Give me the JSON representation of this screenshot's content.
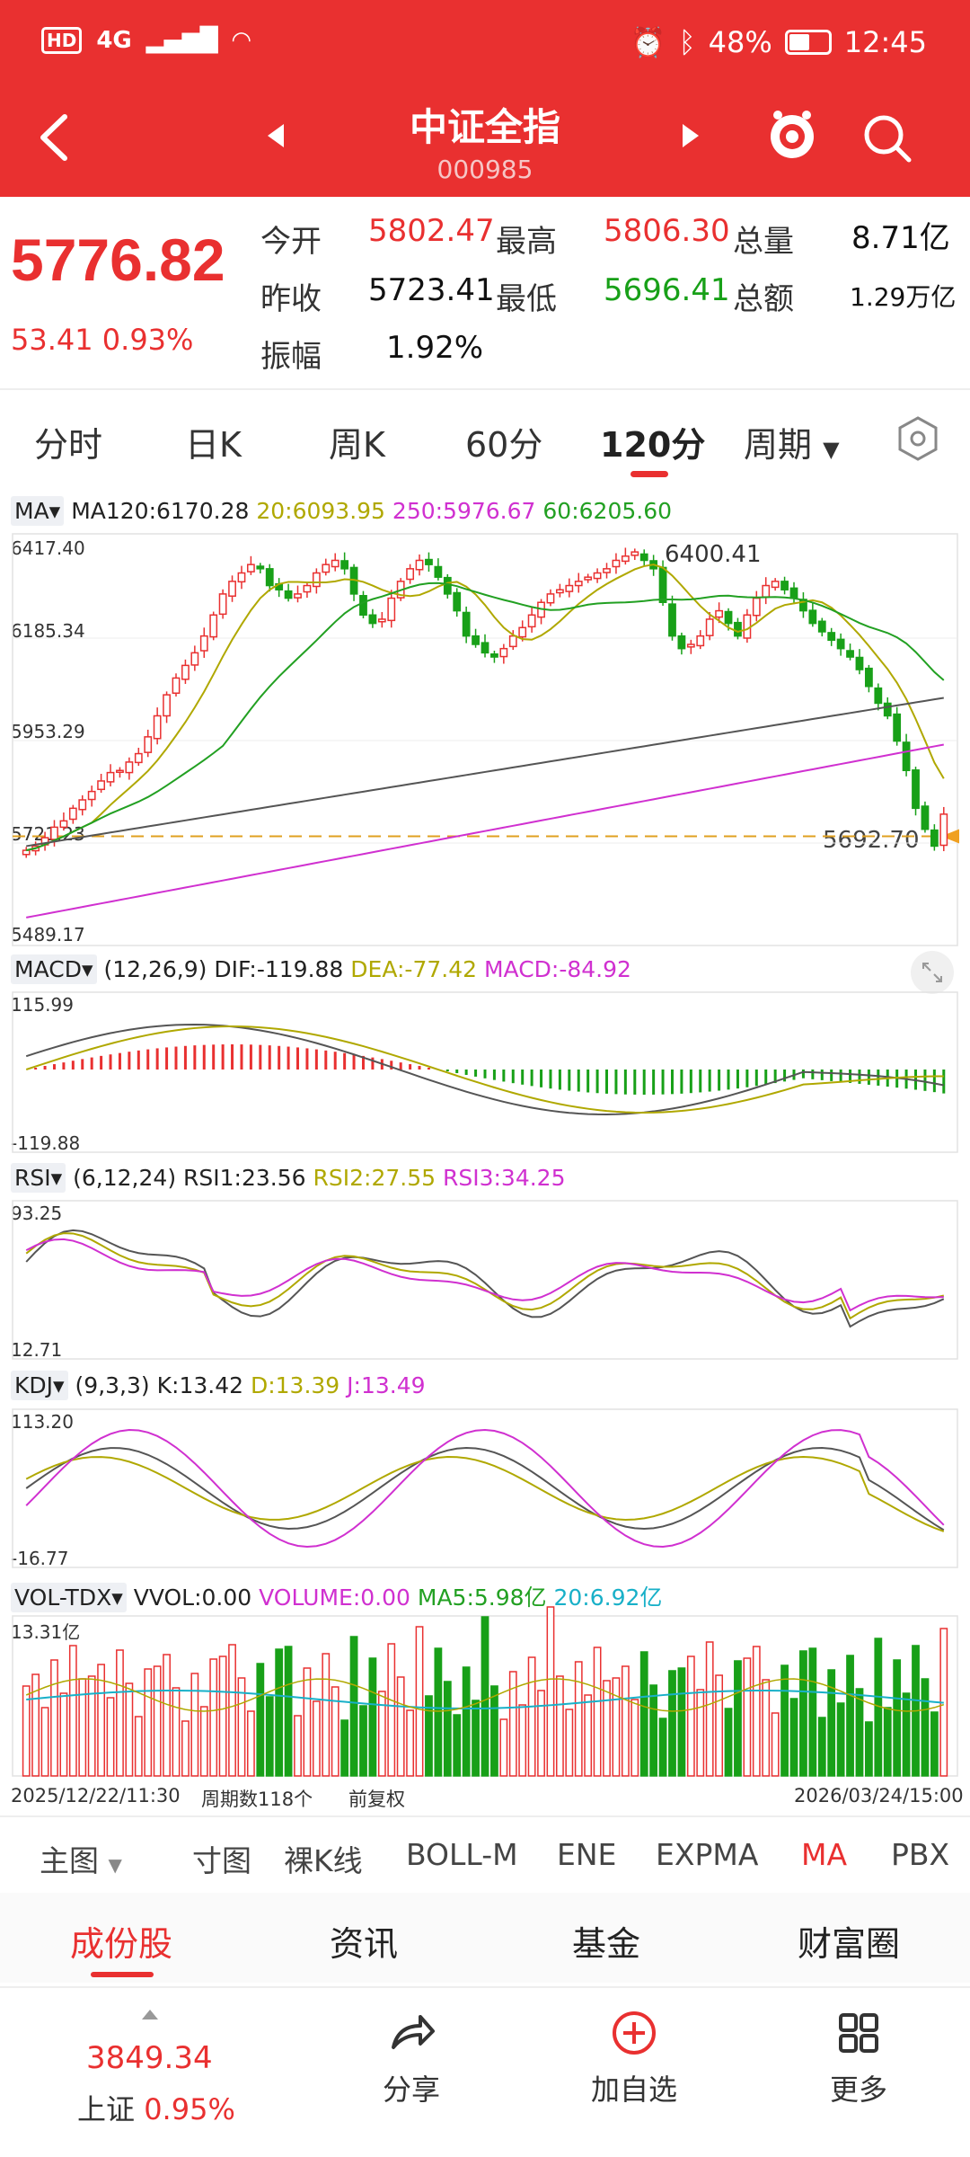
{
  "status": {
    "network": "4G",
    "hd": "HD",
    "battery": "48%",
    "time": "12:45"
  },
  "header": {
    "title": "中证全指",
    "code": "000985"
  },
  "quote": {
    "price": "5776.82",
    "change": "53.41",
    "change_pct": "0.93%",
    "open_label": "今开",
    "open": "5802.47",
    "high_label": "最高",
    "high": "5806.30",
    "vol_label": "总量",
    "vol": "8.71亿",
    "prev_label": "昨收",
    "prev": "5723.41",
    "low_label": "最低",
    "low": "5696.41",
    "amt_label": "总额",
    "amt": "1.29万亿",
    "amp_label": "振幅",
    "amp": "1.92%"
  },
  "tabs": [
    "分时",
    "日K",
    "周K",
    "60分",
    "120分",
    "周期"
  ],
  "active_tab": "120分",
  "main_chart": {
    "ind_name": "MA",
    "ma120": "MA120:6170.28",
    "ma20": "20:6093.95",
    "ma250": "250:5976.67",
    "ma60": "60:6205.60",
    "y_ticks": [
      "6417.40",
      "6185.34",
      "5953.29",
      "5721.23",
      "5489.17"
    ],
    "high_marker": "6400.41",
    "low_marker": "5692.70"
  },
  "macd": {
    "name": "MACD",
    "params": "(12,26,9)",
    "dif": "DIF:-119.88",
    "dea": "DEA:-77.42",
    "macd": "MACD:-84.92",
    "top": "115.99",
    "bottom": "-119.88"
  },
  "rsi": {
    "name": "RSI",
    "params": "(6,12,24)",
    "r1": "RSI1:23.56",
    "r2": "RSI2:27.55",
    "r3": "RSI3:34.25",
    "top": "93.25",
    "bottom": "12.71"
  },
  "kdj": {
    "name": "KDJ",
    "params": "(9,3,3)",
    "k": "K:13.42",
    "d": "D:13.39",
    "j": "J:13.49",
    "top": "113.20",
    "bottom": "-16.77"
  },
  "vol": {
    "name": "VOL-TDX",
    "vvol": "VVOL:0.00",
    "volume": "VOLUME:0.00",
    "ma5": "MA5:5.98亿",
    "ma20": "20:6.92亿",
    "top": "13.31亿"
  },
  "axis_bottom": {
    "start": "2025/12/22/11:30",
    "count": "周期数118个",
    "adjust": "前复权",
    "end": "2026/03/24/15:00"
  },
  "indicators": [
    "主图",
    "寸图",
    "裸K线",
    "BOLL-M",
    "ENE",
    "EXPMA",
    "MA",
    "PBX"
  ],
  "active_indicator": "MA",
  "bottom_tabs": [
    "成份股",
    "资讯",
    "基金",
    "财富圈"
  ],
  "footer": {
    "index_value": "3849.34",
    "index_name": "上证",
    "index_pct": "0.95%",
    "share": "分享",
    "add": "加自选",
    "more": "更多"
  },
  "colors": {
    "brand_red": "#e93030",
    "up": "#e93030",
    "down": "#18a018",
    "ma20": "#b0a800",
    "ma250": "#d030d0",
    "ma60": "#22a022"
  },
  "chart_data": {
    "type": "candlestick",
    "period": "120分",
    "close_series": [
      5690,
      5700,
      5720,
      5745,
      5760,
      5790,
      5810,
      5830,
      5855,
      5875,
      5880,
      5900,
      5920,
      5960,
      6010,
      6060,
      6100,
      6130,
      6160,
      6200,
      6250,
      6300,
      6330,
      6350,
      6370,
      6360,
      6320,
      6310,
      6290,
      6300,
      6320,
      6350,
      6370,
      6380,
      6360,
      6300,
      6250,
      6230,
      6240,
      6290,
      6330,
      6360,
      6380,
      6370,
      6340,
      6300,
      6260,
      6200,
      6180,
      6160,
      6150,
      6170,
      6200,
      6220,
      6250,
      6280,
      6300,
      6310,
      6320,
      6330,
      6340,
      6350,
      6360,
      6380,
      6390,
      6400,
      6380,
      6360,
      6280,
      6200,
      6170,
      6180,
      6200,
      6240,
      6260,
      6230,
      6200,
      6250,
      6290,
      6320,
      6330,
      6310,
      6290,
      6260,
      6230,
      6210,
      6190,
      6170,
      6150,
      6120,
      6080,
      6040,
      6010,
      5950,
      5880,
      5790,
      5740,
      5700,
      5776
    ]
  }
}
